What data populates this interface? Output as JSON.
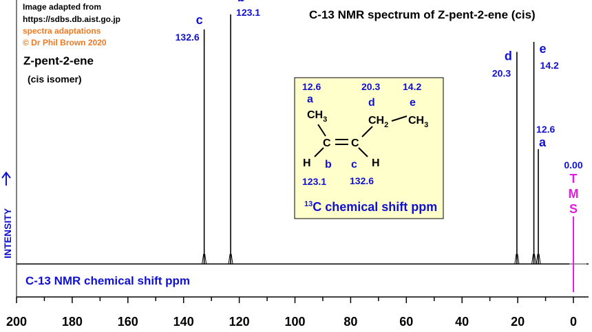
{
  "credits": {
    "line1": "Image adapted from",
    "line2": "https://sdbs.db.aist.go.jp",
    "line3": "spectra adaptations",
    "line4": "© Dr Phil Brown 2020"
  },
  "compound": {
    "name": "Z-pent-2-ene",
    "isomer": "(cis isomer)"
  },
  "chart_data": {
    "type": "nmr-stick-spectrum",
    "title": "C-13 NMR spectrum of Z-pent-2-ene (cis)",
    "xlabel": "C-13 NMR chemical shift ppm",
    "ylabel": "INTENSITY",
    "xlim": [
      200,
      0
    ],
    "x_reversed": true,
    "ticks": [
      200,
      180,
      160,
      140,
      120,
      100,
      80,
      60,
      40,
      20,
      0
    ],
    "peaks": [
      {
        "label": "c",
        "shift": 132.6,
        "shift_text": "132.6",
        "relative_intensity": 0.94
      },
      {
        "label": "b",
        "shift": 123.1,
        "shift_text": "123.1",
        "relative_intensity": 1.0
      },
      {
        "label": "d",
        "shift": 20.3,
        "shift_text": "20.3",
        "relative_intensity": 0.85
      },
      {
        "label": "e",
        "shift": 14.2,
        "shift_text": "14.2",
        "relative_intensity": 0.89
      },
      {
        "label": "a",
        "shift": 12.6,
        "shift_text": "12.6",
        "relative_intensity": 0.46
      }
    ],
    "reference": {
      "name": "TMS",
      "letters": [
        "T",
        "M",
        "S"
      ],
      "shift": 0.0,
      "shift_text": "0.00",
      "color": "#e020e0"
    },
    "colors": {
      "peak_labels": "#1010d0",
      "axis": "#000000",
      "reference": "#e020e0"
    }
  },
  "structure_box": {
    "background": "#ffffcc",
    "caption_sup": "13",
    "caption_rest": "C chemical shift ppm",
    "atoms": {
      "ch3_left_C": "CH",
      "ch3_left_sub": "3",
      "c_left": "C",
      "c_right": "C",
      "ch2_C": "CH",
      "ch2_sub": "2",
      "ch3_right_C": "CH",
      "ch3_right_sub": "3",
      "h_left": "H",
      "h_right": "H"
    },
    "labels": {
      "a_shift": "12.6",
      "a_letter": "a",
      "d_shift": "20.3",
      "d_letter": "d",
      "e_shift": "14.2",
      "e_letter": "e",
      "b_letter": "b",
      "b_shift": "123.1",
      "c_letter": "c",
      "c_shift": "132.6"
    }
  }
}
